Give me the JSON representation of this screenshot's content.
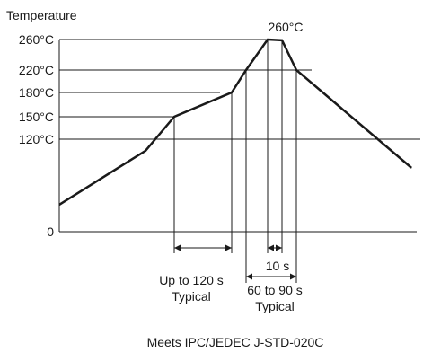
{
  "chart_data": {
    "type": "line",
    "ylabel": "Temperature",
    "y_ticks": [
      {
        "value": 260,
        "label": "260°C"
      },
      {
        "value": 220,
        "label": "220°C"
      },
      {
        "value": 180,
        "label": "180°C"
      },
      {
        "value": 150,
        "label": "150°C"
      },
      {
        "value": 120,
        "label": "120°C"
      },
      {
        "value": 0,
        "label": "0"
      }
    ],
    "profile": [
      {
        "t": 0,
        "temp": 35
      },
      {
        "t": 60,
        "temp": 105
      },
      {
        "t": 80,
        "temp": 150
      },
      {
        "t": 120,
        "temp": 180
      },
      {
        "t": 130,
        "temp": 220
      },
      {
        "t": 145,
        "temp": 260
      },
      {
        "t": 155,
        "temp": 259
      },
      {
        "t": 165,
        "temp": 220
      },
      {
        "t": 245,
        "temp": 83
      }
    ],
    "peak_label": "260°C",
    "annotations": [
      {
        "label": "Up to 120 s",
        "label2": "Typical"
      },
      {
        "label": "10 s"
      },
      {
        "label": "60 to 90 s",
        "label2": "Typical"
      }
    ],
    "footnote": "Meets IPC/JEDEC J-STD-020C"
  },
  "colors": {
    "line": "#1a1a1a",
    "text": "#1a1a1a"
  }
}
